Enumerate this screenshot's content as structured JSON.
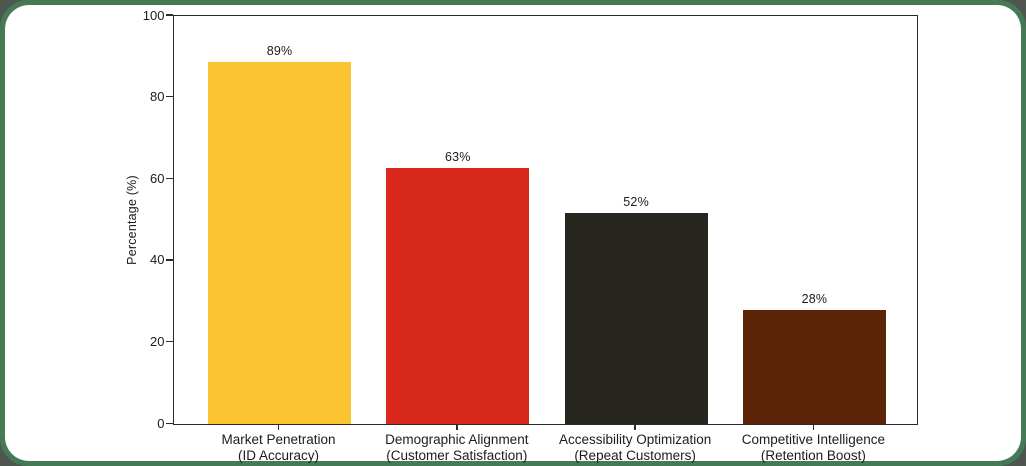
{
  "frame": {
    "border_color": "#457A56",
    "corner_backdrop_color": "#4F564F",
    "card_color": "#FFFFFF"
  },
  "chart_data": {
    "type": "bar",
    "title": "",
    "xlabel": "",
    "ylabel": "Percentage (%)",
    "ylim": [
      0,
      100
    ],
    "yticks": [
      0,
      20,
      40,
      60,
      80,
      100
    ],
    "grid": false,
    "legend": false,
    "categories": [
      [
        "Market Penetration",
        "(ID Accuracy)"
      ],
      [
        "Demographic Alignment",
        "(Customer Satisfaction)"
      ],
      [
        "Accessibility Optimization",
        "(Repeat Customers)"
      ],
      [
        "Competitive Intelligence",
        "(Retention Boost)"
      ]
    ],
    "values": [
      89,
      63,
      52,
      28
    ],
    "value_labels": [
      "89%",
      "63%",
      "52%",
      "28%"
    ],
    "bar_colors": [
      "#FCC430",
      "#D9291D",
      "#27271F",
      "#5C2507"
    ],
    "axis_color": "#2B2B2B",
    "text_color": "#1C1C1C"
  }
}
